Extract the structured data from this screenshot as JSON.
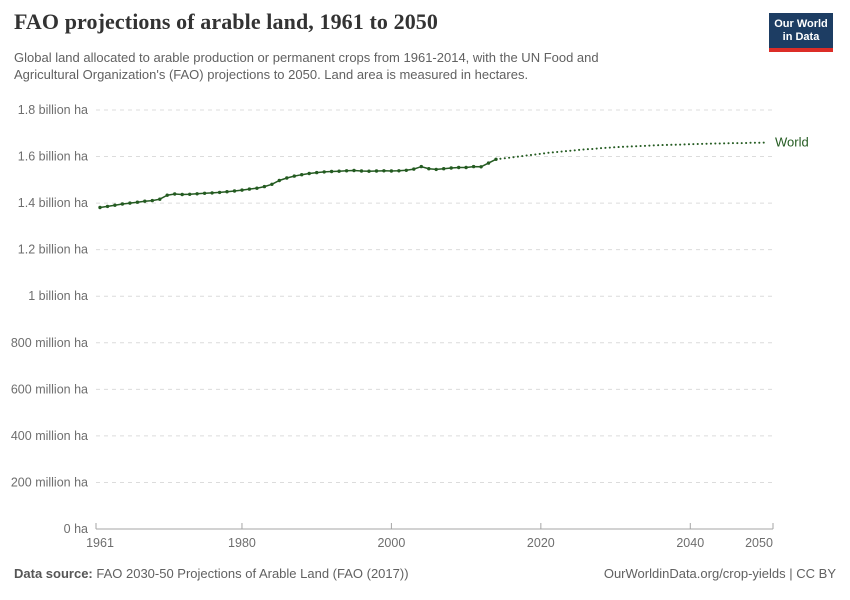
{
  "header": {
    "title": "FAO projections of arable land, 1961 to 2050",
    "subtitle_lines": [
      "Global land allocated to arable production or permanent crops from 1961-2014, with the UN Food and",
      "Agricultural Organization's (FAO) projections to 2050. Land area is measured in hectares."
    ],
    "logo": {
      "line1": "Our World",
      "line2": "in Data",
      "bg_color": "#1d3d63",
      "bar_color": "#dc2d27"
    }
  },
  "chart_data": {
    "type": "line",
    "title": "FAO projections of arable land, 1961 to 2050",
    "unit": "hectares",
    "xlim": [
      1961,
      2050
    ],
    "ylim": [
      0,
      1.8
    ],
    "grid": true,
    "end_label": "World",
    "line_color": "#245b21",
    "y_ticks": [
      {
        "label": "1.8 billion ha",
        "value": 1.8
      },
      {
        "label": "1.6 billion ha",
        "value": 1.6
      },
      {
        "label": "1.4 billion ha",
        "value": 1.4
      },
      {
        "label": "1.2 billion ha",
        "value": 1.2
      },
      {
        "label": "1 billion ha",
        "value": 1.0
      },
      {
        "label": "800 million ha",
        "value": 0.8
      },
      {
        "label": "600 million ha",
        "value": 0.6
      },
      {
        "label": "400 million ha",
        "value": 0.4
      },
      {
        "label": "200 million ha",
        "value": 0.2
      },
      {
        "label": "0 ha",
        "value": 0
      }
    ],
    "x_ticks": [
      {
        "label": "1961",
        "year": 1961
      },
      {
        "label": "1980",
        "year": 1980
      },
      {
        "label": "2000",
        "year": 2000
      },
      {
        "label": "2020",
        "year": 2020
      },
      {
        "label": "2040",
        "year": 2040
      },
      {
        "label": "2050",
        "year": 2050
      }
    ],
    "series": [
      {
        "name": "World (historical, 1961-2014)",
        "style": "solid-markers",
        "color": "#245b21",
        "start_year": 1961,
        "unit": "billion ha",
        "values": [
          1.381,
          1.386,
          1.391,
          1.396,
          1.4,
          1.404,
          1.408,
          1.411,
          1.417,
          1.434,
          1.439,
          1.437,
          1.438,
          1.44,
          1.442,
          1.444,
          1.446,
          1.449,
          1.452,
          1.456,
          1.46,
          1.464,
          1.471,
          1.481,
          1.497,
          1.508,
          1.516,
          1.522,
          1.527,
          1.531,
          1.534,
          1.536,
          1.537,
          1.539,
          1.54,
          1.538,
          1.537,
          1.538,
          1.539,
          1.538,
          1.539,
          1.541,
          1.546,
          1.557,
          1.548,
          1.545,
          1.548,
          1.551,
          1.553,
          1.553,
          1.557,
          1.556,
          1.572,
          1.588
        ]
      },
      {
        "name": "World (FAO projection, 2014-2050)",
        "style": "dotted",
        "color": "#245b21",
        "start_year": 2014,
        "unit": "billion ha",
        "values": [
          1.588,
          1.592,
          1.596,
          1.6,
          1.604,
          1.608,
          1.612,
          1.616,
          1.619,
          1.622,
          1.625,
          1.628,
          1.631,
          1.633,
          1.636,
          1.638,
          1.64,
          1.642,
          1.643,
          1.645,
          1.646,
          1.648,
          1.649,
          1.65,
          1.651,
          1.652,
          1.653,
          1.654,
          1.655,
          1.656,
          1.656,
          1.657,
          1.658,
          1.658,
          1.659,
          1.659,
          1.66
        ]
      }
    ]
  },
  "footer": {
    "source_label": "Data source:",
    "source_text": " FAO 2030-50 Projections of Arable Land (FAO (2017))",
    "right_text": "OurWorldinData.org/crop-yields | CC BY"
  }
}
